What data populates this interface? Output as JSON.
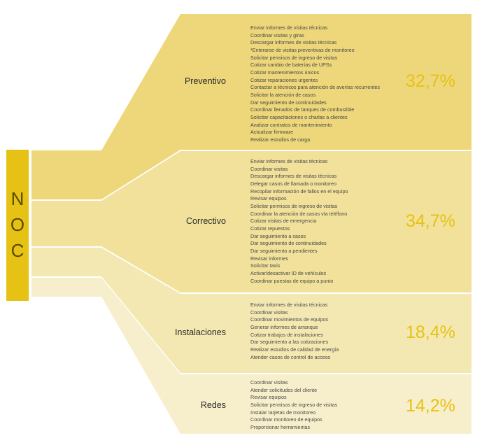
{
  "noc_letters": [
    "N",
    "O",
    "C"
  ],
  "colors": {
    "noc_bar": "#E6C214",
    "preventivo": "#EDD77A",
    "correctivo": "#F1E19A",
    "instalaciones": "#F4E8B2",
    "redes": "#F7EFCB",
    "percent_text": "#E6C214"
  },
  "categories": [
    {
      "label": "Preventivo",
      "percent": "32,7%",
      "tasks": [
        "Enviar informes de visitas técnicas",
        "Coordinar visitas y giras",
        "Descargar informes de visitas técnicas",
        "*Enterarse de visitas preventivas de monitoreo",
        "Solicitar permisos de  ingreso de visitas",
        "Cotizar cambio de baterías de UPSs",
        "Cotizar mantenimientos únicos",
        "Cotizar reparaciones urgentes",
        "Contactar a técnicos para atención de averías recurrentes",
        "Solicitar la atención de casos",
        "Dar seguimiento de continuidades",
        "Coordinar llenados de tanques de combustible",
        "Solicitar capacitaciones o charlas a clientes",
        "Analizar contratos de mantenimiento",
        "Actualizar firmware",
        "Realizar estudios de carga"
      ]
    },
    {
      "label": "Correctivo",
      "percent": "34,7%",
      "tasks": [
        "Enviar informes de visitas técnicas",
        "Coordinar visitas",
        "Descargar informes de visitas técnicas",
        "Delegar casos de llamada o monitoreo",
        "Recopilar información de fallos en el equipo",
        "Revisar equipos",
        "Solicitar permisos de  ingreso de visitas",
        "Coordinar la atención de casos vía teléfono",
        "Cotizar visitas de emergencia",
        "Cotizar repuestos",
        "Dar seguimiento a casos",
        "Dar seguimiento de continuidades",
        "Dar seguimiento a pendientes",
        "Revisar informes",
        "Solicitar taxis",
        "Activar/desactivar ID de vehículos",
        "Coordinar puestas de equipo a punto"
      ]
    },
    {
      "label": "Instalaciones",
      "percent": "18,4%",
      "tasks": [
        "Enviar informes de visitas técnicas",
        "Coordinar visitas",
        "Coordinar movimientos de equipos",
        "Generar informes de arranque",
        "Cotizar trabajos de instalaciones",
        "Dar seguimiento a las cotizaciones",
        "Realizar estudios de calidad de energía",
        "Atender casos de control de acceso"
      ]
    },
    {
      "label": "Redes",
      "percent": "14,2%",
      "tasks": [
        "Coordinar visitas",
        "Atender solicitudes del cliente",
        "Revisar equipos",
        "Solicitar permisos de  ingreso de visitas",
        "Instalar tarjetas de monitoreo",
        "Coordinar monitoreo de equipos",
        "Proporcionar herramientas"
      ]
    }
  ]
}
